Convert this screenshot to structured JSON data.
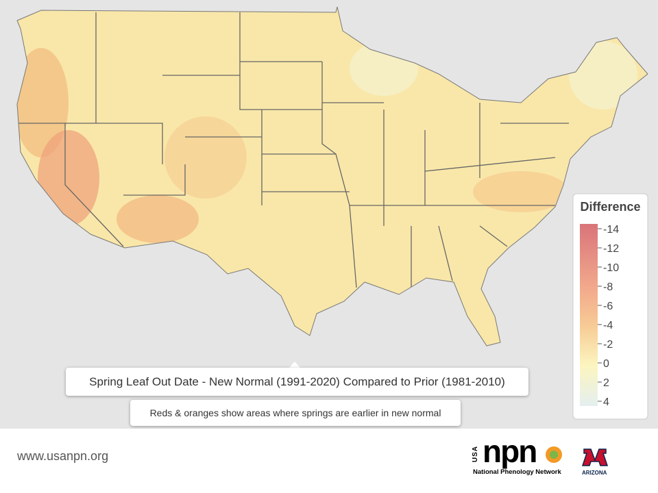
{
  "map": {
    "legend": {
      "title": "Difference",
      "ticks": [
        -14,
        -12,
        -10,
        -8,
        -6,
        -4,
        -2,
        0,
        2,
        4
      ],
      "lim": [
        -14.5,
        4.5
      ]
    },
    "caption": "Spring Leaf Out Date - New Normal (1991-2020) Compared to Prior (1981-2010)",
    "subcaption": "Reds & oranges show areas where springs are earlier in new normal"
  },
  "footer": {
    "url": "www.usanpn.org",
    "logo_usa": "USA",
    "logo_npn": "npn",
    "logo_network": "National Phenology Network",
    "logo_arizona": "ARIZONA"
  }
}
